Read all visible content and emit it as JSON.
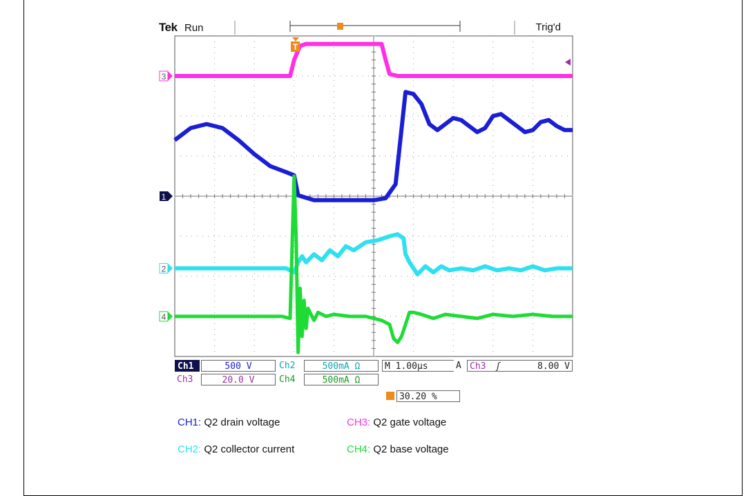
{
  "header": {
    "brand": "Tek",
    "state": "Run",
    "trigger_status": "Trig'd",
    "trigger_marker": "T"
  },
  "colors": {
    "ch1": "#1a1fd6",
    "ch2": "#2fe0f0",
    "ch3": "#ff2fe6",
    "ch4": "#1edb36",
    "trigger": "#f08a1a"
  },
  "chart_data": {
    "type": "line",
    "grid": true,
    "x_divisions": 10,
    "y_divisions": 8,
    "x_unit": "µs",
    "x_range": [
      -3,
      7
    ],
    "y_range_div": [
      -4,
      4
    ],
    "series": [
      {
        "name": "CH1",
        "marker": "1",
        "offset_div": 0,
        "color_key": "ch1",
        "x": [
          -3,
          -2.6,
          -2.2,
          -1.8,
          -1.4,
          -1.0,
          -0.6,
          -0.2,
          0.0,
          0.1,
          0.5,
          1.0,
          1.5,
          2.0,
          2.3,
          2.55,
          2.8,
          3.0,
          3.2,
          3.4,
          3.6,
          3.8,
          4.0,
          4.2,
          4.4,
          4.6,
          4.8,
          5.0,
          5.2,
          5.4,
          5.6,
          5.8,
          6.0,
          6.2,
          6.4,
          6.6,
          6.8,
          7.0
        ],
        "y": [
          1.4,
          1.7,
          1.8,
          1.7,
          1.4,
          1.05,
          0.75,
          0.6,
          0.52,
          0.02,
          -0.1,
          -0.1,
          -0.1,
          -0.1,
          -0.05,
          0.3,
          2.6,
          2.55,
          2.3,
          1.8,
          1.65,
          1.8,
          1.95,
          1.9,
          1.75,
          1.6,
          1.7,
          2.0,
          2.05,
          1.9,
          1.75,
          1.6,
          1.65,
          1.85,
          1.9,
          1.75,
          1.65,
          1.65
        ]
      },
      {
        "name": "CH2",
        "marker": "2",
        "offset_div": -1.8,
        "color_key": "ch2",
        "x": [
          -3,
          -2.0,
          -1.0,
          -0.2,
          0.0,
          0.1,
          0.2,
          0.3,
          0.5,
          0.7,
          0.9,
          1.1,
          1.3,
          1.5,
          1.8,
          2.1,
          2.4,
          2.6,
          2.75,
          2.8,
          2.9,
          3.1,
          3.3,
          3.5,
          3.7,
          3.9,
          4.2,
          4.5,
          4.8,
          5.1,
          5.4,
          5.7,
          6.0,
          6.3,
          6.6,
          7.0
        ],
        "y": [
          0.0,
          0.0,
          0.0,
          0.0,
          -0.1,
          0.15,
          0.3,
          0.15,
          0.35,
          0.2,
          0.45,
          0.3,
          0.55,
          0.45,
          0.65,
          0.7,
          0.8,
          0.85,
          0.75,
          0.35,
          0.15,
          -0.15,
          0.05,
          -0.1,
          0.05,
          -0.05,
          0.0,
          -0.05,
          0.05,
          -0.05,
          0.0,
          -0.05,
          0.05,
          -0.05,
          0.0,
          0.0
        ]
      },
      {
        "name": "CH3",
        "marker": "3",
        "offset_div": 3.0,
        "color_key": "ch3",
        "x": [
          -3,
          -0.1,
          0.0,
          0.15,
          0.3,
          2.2,
          2.3,
          2.4,
          2.6,
          7.0
        ],
        "y": [
          0.0,
          0.0,
          0.4,
          0.75,
          0.8,
          0.8,
          0.4,
          0.05,
          0.0,
          0.0
        ]
      },
      {
        "name": "CH4",
        "marker": "4",
        "offset_div": -3.0,
        "color_key": "ch4",
        "x": [
          -3,
          -1.0,
          -0.3,
          -0.1,
          0.0,
          0.05,
          0.1,
          0.15,
          0.2,
          0.25,
          0.3,
          0.35,
          0.4,
          0.5,
          0.6,
          0.8,
          1.0,
          1.4,
          1.8,
          2.2,
          2.4,
          2.5,
          2.6,
          2.7,
          2.8,
          2.9,
          3.0,
          3.2,
          3.5,
          3.8,
          4.2,
          4.6,
          5.0,
          5.5,
          6.0,
          6.5,
          7.0
        ],
        "y": [
          0.0,
          0.0,
          0.0,
          -0.05,
          3.5,
          2.0,
          -0.9,
          0.7,
          -0.5,
          0.4,
          -0.3,
          0.2,
          0.1,
          -0.1,
          0.1,
          0.0,
          0.05,
          0.0,
          0.0,
          -0.1,
          -0.2,
          -0.55,
          -0.65,
          -0.5,
          -0.2,
          0.1,
          0.1,
          0.05,
          -0.05,
          0.05,
          0.0,
          -0.05,
          0.05,
          0.0,
          0.05,
          0.0,
          0.0
        ]
      }
    ]
  },
  "readouts": {
    "ch1_label": "Ch1",
    "ch1_scale": "500 V",
    "ch2_label": "Ch2",
    "ch2_scale": "500mA Ω",
    "ch3_label": "Ch3",
    "ch3_scale": "20.0 V",
    "ch4_label": "Ch4",
    "ch4_scale": "500mA Ω",
    "timebase": "M 1.00µs",
    "trigger_mode": "A",
    "trigger_source": "Ch3",
    "trigger_slope": "ʃ",
    "trigger_level": "8.00 V",
    "trigger_position": "30.20 %"
  },
  "legend": [
    {
      "tag": "CH1:",
      "text": "Q2 drain voltage",
      "color_key": "ch1"
    },
    {
      "tag": "CH3:",
      "text": "Q2 gate voltage",
      "color_key": "ch3"
    },
    {
      "tag": "CH2:",
      "text": "Q2 collector current",
      "color_key": "ch2"
    },
    {
      "tag": "CH4:",
      "text": "Q2 base voltage",
      "color_key": "ch4"
    }
  ]
}
